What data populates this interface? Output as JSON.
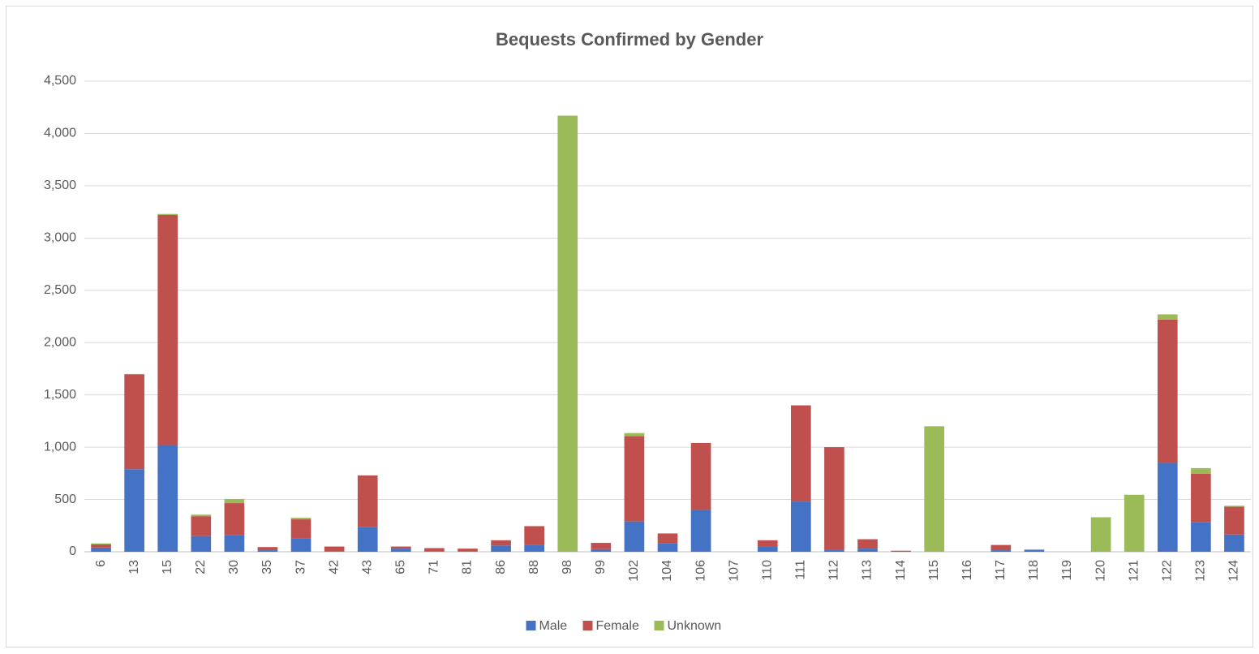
{
  "chart_data": {
    "type": "bar",
    "stacked": true,
    "title": "Bequests Confirmed by Gender",
    "categories": [
      "6",
      "13",
      "15",
      "22",
      "30",
      "35",
      "37",
      "42",
      "43",
      "65",
      "71",
      "81",
      "86",
      "88",
      "98",
      "99",
      "102",
      "104",
      "106",
      "107",
      "110",
      "111",
      "112",
      "113",
      "114",
      "115",
      "116",
      "117",
      "118",
      "119",
      "120",
      "121",
      "122",
      "123",
      "124"
    ],
    "series": [
      {
        "name": "Male",
        "color": "#4472c4",
        "values": [
          40,
          790,
          1020,
          150,
          160,
          15,
          125,
          5,
          235,
          30,
          5,
          5,
          60,
          65,
          0,
          25,
          290,
          80,
          400,
          0,
          50,
          480,
          20,
          30,
          0,
          0,
          0,
          15,
          20,
          0,
          0,
          0,
          850,
          285,
          165
        ]
      },
      {
        "name": "Female",
        "color": "#c0504d",
        "values": [
          30,
          905,
          2200,
          190,
          305,
          30,
          185,
          45,
          495,
          20,
          30,
          25,
          50,
          180,
          0,
          60,
          815,
          95,
          640,
          0,
          60,
          920,
          980,
          90,
          10,
          0,
          0,
          50,
          0,
          0,
          0,
          0,
          1370,
          460,
          265
        ]
      },
      {
        "name": "Unknown",
        "color": "#9bbb59",
        "values": [
          10,
          5,
          10,
          15,
          40,
          0,
          15,
          0,
          0,
          0,
          0,
          0,
          0,
          0,
          4170,
          0,
          30,
          0,
          0,
          0,
          0,
          0,
          0,
          0,
          0,
          1200,
          0,
          0,
          0,
          0,
          330,
          545,
          50,
          55,
          10
        ]
      }
    ],
    "ylim": [
      0,
      4500
    ],
    "yticks": [
      0,
      500,
      {
        "value": 1000,
        "label": "1,000"
      },
      {
        "value": 1500,
        "label": "1,500"
      },
      {
        "value": 2000,
        "label": "2,000"
      },
      {
        "value": 2500,
        "label": "2,500"
      },
      {
        "value": 3000,
        "label": "3,000"
      },
      {
        "value": 3500,
        "label": "3,500"
      },
      {
        "value": 4000,
        "label": "4,000"
      },
      {
        "value": 4500,
        "label": "4,500"
      }
    ],
    "grid": true,
    "legend": "bottom"
  }
}
